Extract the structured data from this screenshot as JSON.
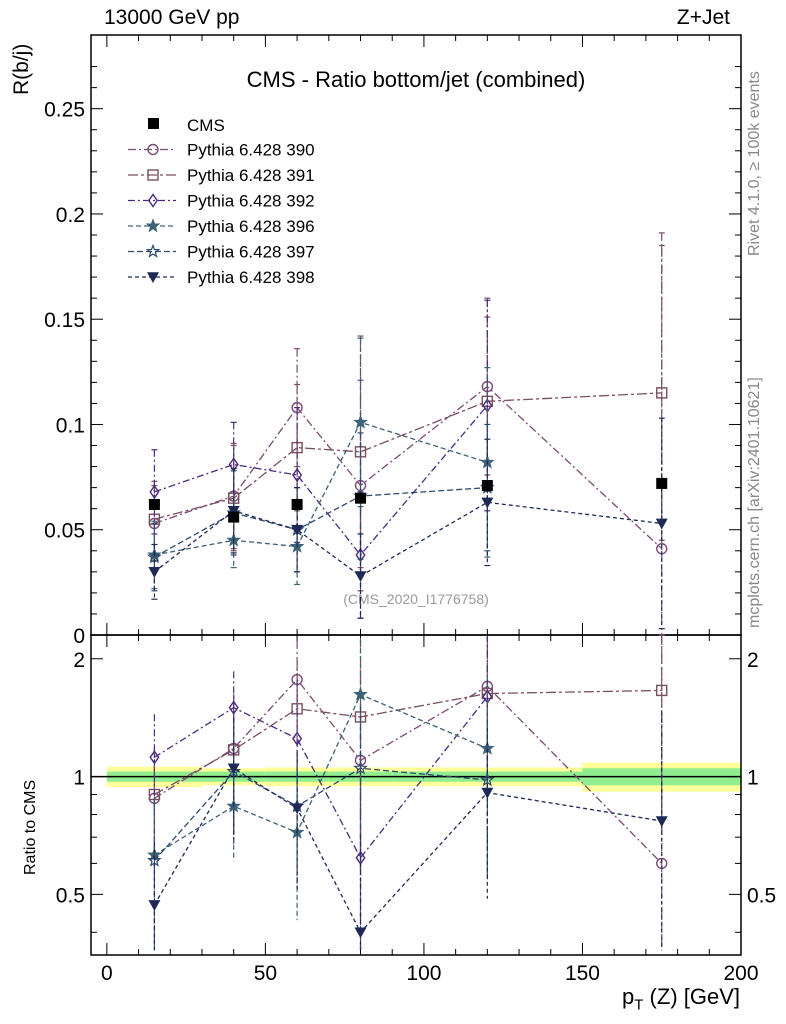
{
  "header": {
    "energy_label": "13000 GeV pp",
    "process_label": "Z+Jet"
  },
  "side_labels": {
    "rivet": "Rivet 4.1.0, ≥ 100k events",
    "mcplots": "mcplots.cern.ch [arXiv:2401.10621]"
  },
  "chart_data": {
    "type": "scatter",
    "title": "CMS - Ratio bottom/jet (combined)",
    "watermark": "(CMS_2020_I1776758)",
    "xlabel_main": "p",
    "xlabel_sub": "T",
    "xlabel_rest": " (Z) [GeV]",
    "ylabel": "R(b/j)",
    "ratio_ylabel": "Ratio to CMS",
    "xlim": [
      -5,
      200
    ],
    "ylim": [
      0,
      0.285
    ],
    "ratio_ylim": [
      0.35,
      2.3
    ],
    "x_ticks": [
      "0",
      "50",
      "100",
      "150",
      "200"
    ],
    "y_ticks": [
      "0",
      "0.05",
      "0.1",
      "0.15",
      "0.2",
      "0.25"
    ],
    "ratio_ticks": [
      "0.5",
      "1",
      "2"
    ],
    "ratio_right_ticks": [
      "0.5",
      "1",
      "2"
    ],
    "x": [
      15,
      40,
      60,
      80,
      120,
      175
    ],
    "bins": [
      [
        0,
        30
      ],
      [
        30,
        50
      ],
      [
        50,
        70
      ],
      [
        70,
        90
      ],
      [
        90,
        150
      ],
      [
        150,
        200
      ]
    ],
    "data": {
      "name": "CMS",
      "values": [
        0.062,
        0.056,
        0.062,
        0.065,
        0.071,
        0.072
      ],
      "band_stat": [
        0.03,
        0.03,
        0.03,
        0.03,
        0.03,
        0.05
      ],
      "band_total": [
        0.06,
        0.05,
        0.055,
        0.055,
        0.055,
        0.085
      ]
    },
    "series": [
      {
        "name": "Pythia 6.428 390",
        "color": "#7b4a78",
        "marker": "circle-open",
        "dash": "8,3,2,3",
        "values": [
          0.053,
          0.066,
          0.108,
          0.071,
          0.118,
          0.041
        ],
        "errors": [
          0.018,
          0.025,
          0.028,
          0.05,
          0.042,
          0.15
        ],
        "ratio": [
          0.88,
          1.18,
          1.77,
          1.1,
          1.7,
          0.6
        ]
      },
      {
        "name": "Pythia 6.428 391",
        "color": "#7a4f60",
        "marker": "square-open",
        "dash": "10,3,3,3",
        "values": [
          0.055,
          0.065,
          0.089,
          0.087,
          0.111,
          0.115
        ],
        "errors": [
          0.018,
          0.025,
          0.03,
          0.055,
          0.04,
          0.07
        ],
        "ratio": [
          0.9,
          1.17,
          1.49,
          1.42,
          1.63,
          1.66
        ]
      },
      {
        "name": "Pythia 6.428 392",
        "color": "#4b2b80",
        "marker": "diamond-open",
        "dash": "7,3,2,3",
        "values": [
          0.068,
          0.081,
          0.076,
          0.038,
          0.109,
          0.0
        ],
        "errors": [
          0.02,
          0.02,
          0.032,
          0.03,
          0.05,
          0.0
        ],
        "ratio": [
          1.12,
          1.5,
          1.25,
          0.62,
          1.6,
          null
        ]
      },
      {
        "name": "Pythia 6.428 396",
        "color": "#3d6276",
        "marker": "star-filled",
        "dash": "5,3",
        "values": [
          0.038,
          0.045,
          0.042,
          0.101,
          0.082,
          0.0
        ],
        "errors": [
          0.016,
          0.013,
          0.018,
          0.04,
          0.045,
          0.0
        ],
        "ratio": [
          0.63,
          0.84,
          0.72,
          1.62,
          1.18,
          null
        ]
      },
      {
        "name": "Pythia 6.428 397",
        "color": "#2e4a70",
        "marker": "star-open",
        "dash": "6,3",
        "values": [
          0.037,
          0.058,
          0.05,
          0.066,
          0.07,
          0.0
        ],
        "errors": [
          0.016,
          0.02,
          0.02,
          0.03,
          0.03,
          0.0
        ],
        "ratio": [
          0.61,
          1.03,
          0.84,
          1.05,
          0.98,
          null
        ]
      },
      {
        "name": "Pythia 6.428 398",
        "color": "#1e2a55",
        "marker": "triangle-down",
        "dash": "4,3",
        "values": [
          0.03,
          0.059,
          0.05,
          0.028,
          0.063,
          0.053
        ],
        "errors": [
          0.013,
          0.02,
          0.02,
          0.02,
          0.03,
          0.05
        ],
        "ratio": [
          0.47,
          1.05,
          0.83,
          0.4,
          0.91,
          0.77
        ]
      }
    ]
  }
}
